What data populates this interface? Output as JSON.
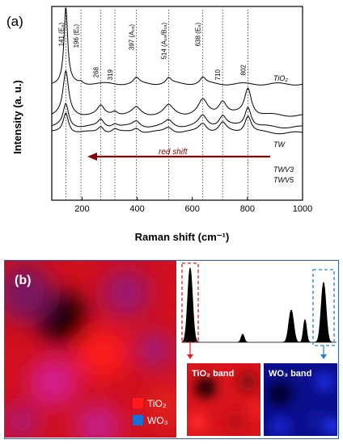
{
  "panel_a": {
    "label": "(a)",
    "chart_data": {
      "type": "line",
      "xlabel": "Raman shift (cm⁻¹)",
      "ylabel": "Intensity (a. u.)",
      "xlim": [
        90,
        1000
      ],
      "xticks": [
        "200",
        "400",
        "600",
        "800",
        "1000"
      ],
      "series": [
        {
          "name": "TiO₂",
          "baseline": 0.0,
          "peaks": [
            [
              141,
              10.5,
              8
            ],
            [
              196,
              0.3,
              8
            ],
            [
              397,
              0.8,
              12
            ],
            [
              514,
              0.8,
              12
            ],
            [
              638,
              0.9,
              12
            ]
          ]
        },
        {
          "name": "TW",
          "baseline": 2.45,
          "peaks": [
            [
              141,
              6.0,
              12
            ],
            [
              268,
              1.2,
              14
            ],
            [
              319,
              0.6,
              14
            ],
            [
              397,
              1.0,
              18
            ],
            [
              514,
              1.3,
              20
            ],
            [
              638,
              2.0,
              20
            ],
            [
              710,
              1.9,
              18
            ],
            [
              802,
              3.7,
              15
            ]
          ]
        },
        {
          "name": "TWV3",
          "baseline": 3.35,
          "peaks": [
            [
              141,
              3.2,
              12
            ],
            [
              268,
              1.0,
              13
            ],
            [
              319,
              0.5,
              13
            ],
            [
              397,
              0.8,
              16
            ],
            [
              514,
              0.9,
              18
            ],
            [
              638,
              1.5,
              18
            ],
            [
              710,
              1.5,
              16
            ],
            [
              802,
              2.8,
              14
            ]
          ]
        },
        {
          "name": "TWV5",
          "baseline": 3.8,
          "peaks": [
            [
              141,
              2.8,
              12
            ],
            [
              268,
              0.9,
              13
            ],
            [
              319,
              0.5,
              13
            ],
            [
              397,
              0.7,
              16
            ],
            [
              514,
              0.8,
              18
            ],
            [
              638,
              1.3,
              18
            ],
            [
              710,
              1.3,
              16
            ],
            [
              802,
              2.4,
              14
            ]
          ]
        }
      ],
      "peak_labels": [
        {
          "x": 141,
          "text": "141 (E₉)"
        },
        {
          "x": 196,
          "text": "196 (E₉)"
        },
        {
          "x": 397,
          "text": "397 (A₁₉)"
        },
        {
          "x": 514,
          "text": "514 (A₁₉/B₁₉)"
        },
        {
          "x": 638,
          "text": "638 (E₉)"
        },
        {
          "x": 268,
          "text": "268"
        },
        {
          "x": 319,
          "text": "319"
        },
        {
          "x": 710,
          "text": "710"
        },
        {
          "x": 802,
          "text": "802"
        }
      ],
      "annotation": "red shift"
    }
  },
  "panel_b": {
    "label": "(b)",
    "legend": [
      {
        "text": "TiO₂",
        "color": "#ff1a1a"
      },
      {
        "text": "WO₃",
        "color": "#1a6fd6"
      }
    ],
    "tio2_band_label": "TiO₂ band",
    "wo3_band_label": "WO₃ band",
    "colors": {
      "frame": "#2f5f9f",
      "red_box": "#e02020",
      "blue_box": "#2a7fd0"
    }
  }
}
